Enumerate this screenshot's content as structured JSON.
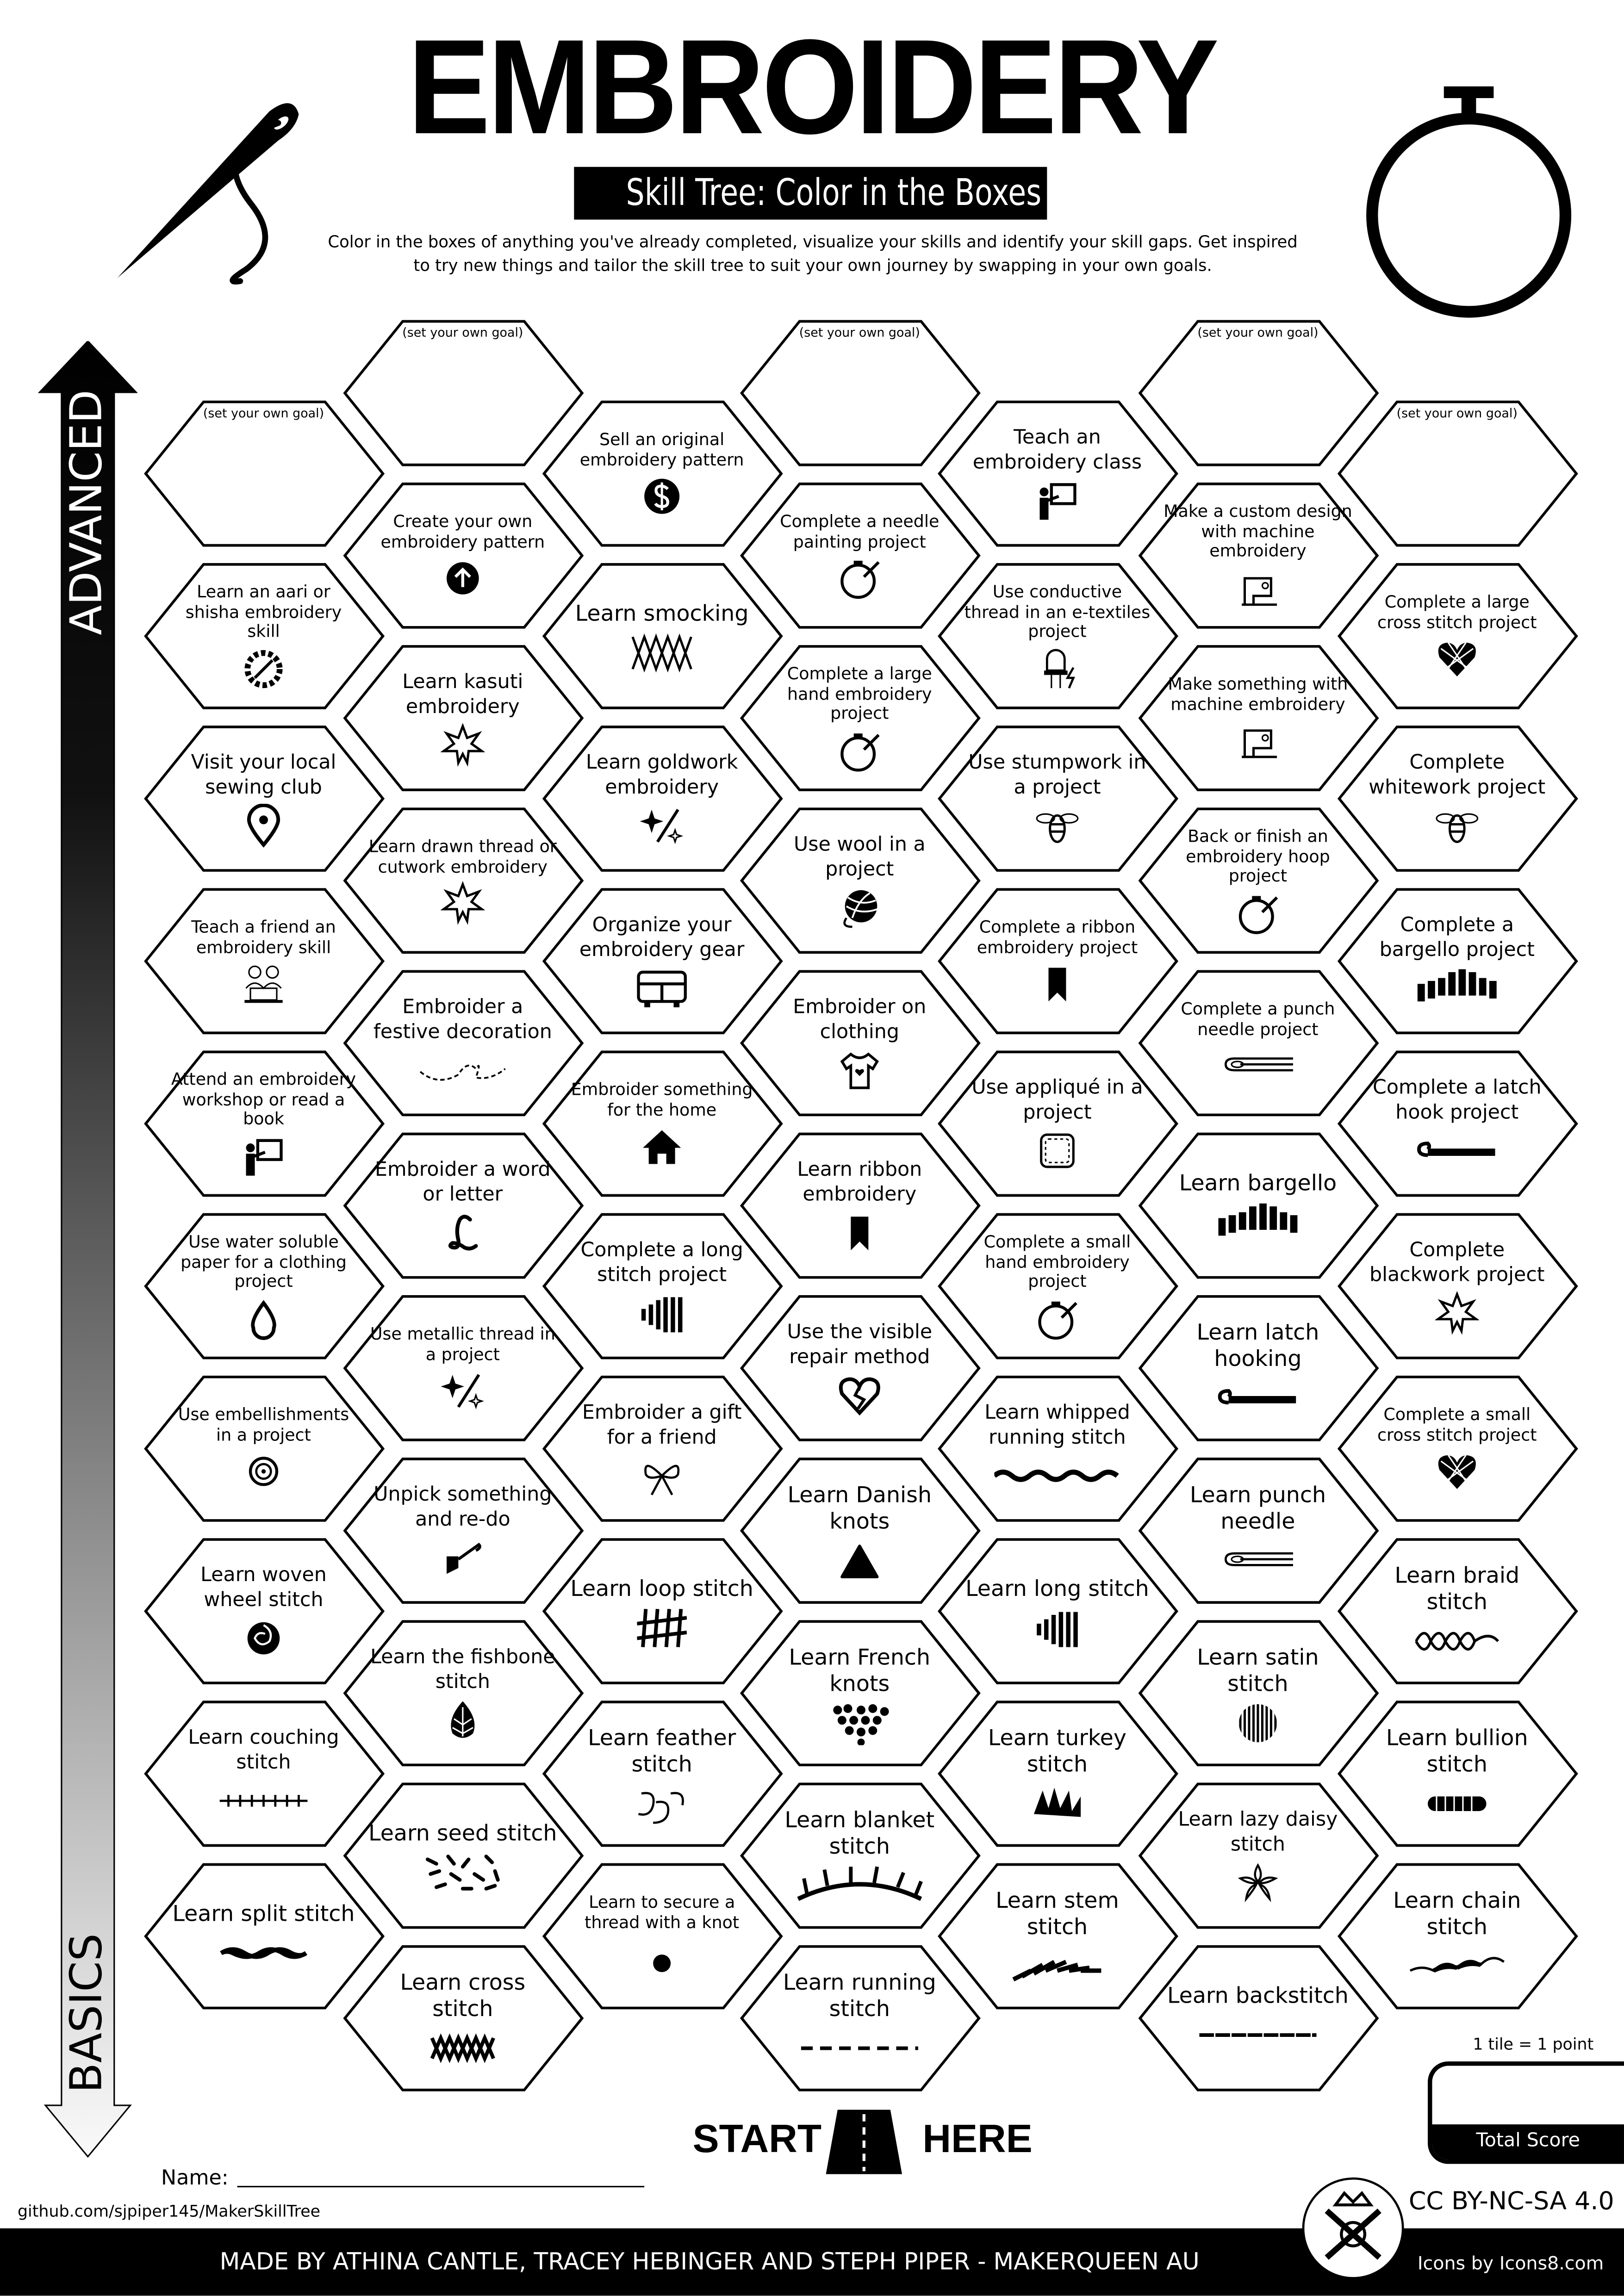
{
  "header": {
    "title": "EMBROIDERY",
    "subtitle": "Skill Tree: Color in the Boxes",
    "description": "Color in the boxes of anything you've already completed, visualize your skills and identify your skill gaps.  Get inspired to try new things and tailor the skill tree to suit your own journey by swapping in your own goals."
  },
  "axis": {
    "top_label": "ADVANCED",
    "bottom_label": "BASICS"
  },
  "goal_text": "(set your own goal)",
  "columns": [
    [
      {
        "goal": true,
        "label": ""
      },
      {
        "label": "Learn an aari or shisha embroidery skill",
        "icon": "saw-blade-icon"
      },
      {
        "label": "Visit your local sewing club",
        "icon": "location-pin-icon"
      },
      {
        "label": "Teach a friend an embroidery skill",
        "icon": "people-laptop-icon"
      },
      {
        "label": "Attend an embroidery workshop or read a book",
        "icon": "teacher-board-icon"
      },
      {
        "label": "Use water soluble paper for a clothing project",
        "icon": "water-drop-icon"
      },
      {
        "label": "Use embellishments in a project",
        "icon": "button-icon"
      },
      {
        "label": "Learn woven wheel stitch",
        "icon": "rose-icon"
      },
      {
        "label": "Learn couching stitch",
        "icon": "couching-stitch-icon"
      },
      {
        "label": "Learn split stitch",
        "icon": "split-stitch-icon"
      }
    ],
    [
      {
        "goal": true,
        "label": ""
      },
      {
        "label": "Create your own embroidery pattern",
        "icon": "arrow-up-circle-icon"
      },
      {
        "label": "Learn kasuti embroidery",
        "icon": "star-flower-icon"
      },
      {
        "label": "Learn drawn thread or cutwork embroidery",
        "icon": "star-flower-icon"
      },
      {
        "label": "Embroider a festive decoration",
        "icon": "dashed-heart-icon"
      },
      {
        "label": "Embroider a word or letter",
        "icon": "letter-l-icon"
      },
      {
        "label": "Use metallic thread in a project",
        "icon": "needle-sparkle-icon"
      },
      {
        "label": "Unpick something and re-do",
        "icon": "seam-ripper-icon"
      },
      {
        "label": "Learn the fishbone stitch",
        "icon": "pinecone-icon"
      },
      {
        "label": "Learn seed stitch",
        "icon": "seed-stitch-icon"
      },
      {
        "label": "Learn cross stitch",
        "icon": "cross-stitch-icon"
      }
    ],
    [
      {
        "label": "Sell an original embroidery pattern",
        "icon": "dollar-icon"
      },
      {
        "label": "Learn smocking",
        "icon": "smocking-icon"
      },
      {
        "label": "Learn goldwork embroidery",
        "icon": "needle-sparkle-icon"
      },
      {
        "label": "Organize your embroidery gear",
        "icon": "storage-cabinet-icon"
      },
      {
        "label": "Embroider something for the home",
        "icon": "home-icon"
      },
      {
        "label": "Complete a long stitch project",
        "icon": "long-stitch-icon"
      },
      {
        "label": "Embroider a gift for a friend",
        "icon": "gift-bow-icon"
      },
      {
        "label": "Learn loop stitch",
        "icon": "loop-stitch-icon"
      },
      {
        "label": "Learn feather stitch",
        "icon": "feather-stitch-icon"
      },
      {
        "label": "Learn to secure a thread with a knot",
        "icon": "knot-dot-icon"
      }
    ],
    [
      {
        "goal": true,
        "label": ""
      },
      {
        "label": "Complete a needle painting project",
        "icon": "hoop-icon"
      },
      {
        "label": "Complete a large hand embroidery project",
        "icon": "hoop-icon"
      },
      {
        "label": "Use wool in a project",
        "icon": "yarn-ball-icon"
      },
      {
        "label": "Embroider on clothing",
        "icon": "tshirt-icon"
      },
      {
        "label": "Learn ribbon embroidery",
        "icon": "bookmark-icon"
      },
      {
        "label": "Use the visible repair method",
        "icon": "broken-heart-icon"
      },
      {
        "label": "Learn Danish knots",
        "icon": "triangle-icon"
      },
      {
        "label": "Learn French knots",
        "icon": "dots-heart-icon"
      },
      {
        "label": "Learn blanket stitch",
        "icon": "blanket-stitch-icon"
      },
      {
        "label": "Learn running stitch",
        "icon": "running-stitch-icon"
      }
    ],
    [
      {
        "label": "Teach an embroidery class",
        "icon": "teacher-board-icon"
      },
      {
        "label": "Use conductive thread in an e-textiles project",
        "icon": "led-icon"
      },
      {
        "label": "Use stumpwork in a project",
        "icon": "bee-icon"
      },
      {
        "label": "Complete a ribbon embroidery project",
        "icon": "bookmark-icon"
      },
      {
        "label": "Use appliqué in a project",
        "icon": "patch-icon"
      },
      {
        "label": "Complete a small hand embroidery project",
        "icon": "hoop-icon"
      },
      {
        "label": "Learn whipped running stitch",
        "icon": "whipped-stitch-icon"
      },
      {
        "label": "Learn long stitch",
        "icon": "long-stitch-icon"
      },
      {
        "label": "Learn turkey stitch",
        "icon": "turkey-stitch-icon"
      },
      {
        "label": "Learn stem stitch",
        "icon": "stem-stitch-icon"
      }
    ],
    [
      {
        "goal": true,
        "label": ""
      },
      {
        "label": "Make a custom design with  machine embroidery",
        "icon": "sewing-machine-icon"
      },
      {
        "label": "Make something with machine embroidery",
        "icon": "sewing-machine-icon"
      },
      {
        "label": "Back or finish an embroidery hoop project",
        "icon": "hoop-icon"
      },
      {
        "label": "Complete a punch needle project",
        "icon": "punch-needle-icon"
      },
      {
        "label": "Learn bargello",
        "icon": "bargello-icon"
      },
      {
        "label": "Learn latch hooking",
        "icon": "latch-hook-icon"
      },
      {
        "label": "Learn punch needle",
        "icon": "punch-needle-icon"
      },
      {
        "label": "Learn satin stitch",
        "icon": "satin-stitch-icon"
      },
      {
        "label": "Learn lazy daisy stitch",
        "icon": "daisy-icon"
      },
      {
        "label": "Learn backstitch",
        "icon": "backstitch-icon"
      }
    ],
    [
      {
        "goal": true,
        "label": ""
      },
      {
        "label": "Complete a large cross stitch project",
        "icon": "cross-heart-icon"
      },
      {
        "label": "Complete whitework project",
        "icon": "bee-icon"
      },
      {
        "label": "Complete a bargello project",
        "icon": "bargello-icon"
      },
      {
        "label": "Complete a latch hook project",
        "icon": "latch-hook-icon"
      },
      {
        "label": "Complete blackwork project",
        "icon": "star-flower-icon"
      },
      {
        "label": "Complete a small cross stitch project",
        "icon": "cross-heart-icon"
      },
      {
        "label": "Learn braid stitch",
        "icon": "braid-stitch-icon"
      },
      {
        "label": "Learn bullion stitch",
        "icon": "bullion-stitch-icon"
      },
      {
        "label": "Learn chain stitch",
        "icon": "chain-stitch-icon"
      }
    ]
  ],
  "start": {
    "left": "START",
    "right": "HERE"
  },
  "score": {
    "note": "1 tile = 1 point",
    "label": "Total Score"
  },
  "name_label": "Name:",
  "github": "github.com/sjpiper145/MakerSkillTree",
  "footer": {
    "credits": "MADE BY ATHINA CANTLE, TRACEY HEBINGER AND STEPH PIPER  -  MAKERQUEEN AU",
    "license": "CC BY-NC-SA 4.0",
    "icons_credit": "Icons by Icons8.com"
  },
  "colors": {
    "ink": "#000000",
    "paper": "#ffffff"
  }
}
